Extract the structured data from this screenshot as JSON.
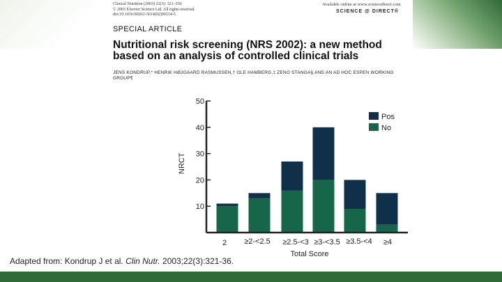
{
  "article": {
    "citation": "Clinical Nutrition (2003) 22(3): 321–336\n© 2003 Elsevier Science Ltd. All rights reserved.\ndoi:10.1016/S0261-5614(02)00214-5",
    "availability": "Available online at www.sciencedirect.com",
    "logo": "SCIENCE @ DIRECT®",
    "section": "SPECIAL ARTICLE",
    "title": "Nutritional risk screening (NRS 2002): a new method based on an analysis of controlled clinical trials",
    "authors": "JENS KONDRUP,* HENRIK HØJGAARD RASMUSSEN,† OLE HAMBERG,‡ ZENO STANGA§ AND AN AD HOC ESPEN WORKING GROUP¶"
  },
  "caption": {
    "prefix": "Adapted from: Kondrup J et al. ",
    "journal": "Clin Nutr.",
    "suffix": " 2003;22(3):321-36."
  },
  "colors": {
    "pos": "#10304a",
    "no": "#16664a",
    "footer": "#2f6a38"
  },
  "chart_data": {
    "type": "bar",
    "stacked": true,
    "categories": [
      "2",
      "≥2-<2.5",
      "≥2.5-<3",
      "≥3-<3.5",
      "≥3.5-<4",
      "≥4"
    ],
    "series": [
      {
        "name": "No",
        "values": [
          10,
          13,
          16,
          20,
          9,
          3
        ]
      },
      {
        "name": "Pos",
        "values": [
          1,
          2,
          11,
          20,
          11,
          12
        ]
      }
    ],
    "xlabel": "Total Score",
    "ylabel": "NRCT",
    "yticks": [
      10,
      20,
      30,
      40,
      50
    ],
    "ylim": [
      0,
      50
    ],
    "legend": "top-right",
    "grid": false
  }
}
